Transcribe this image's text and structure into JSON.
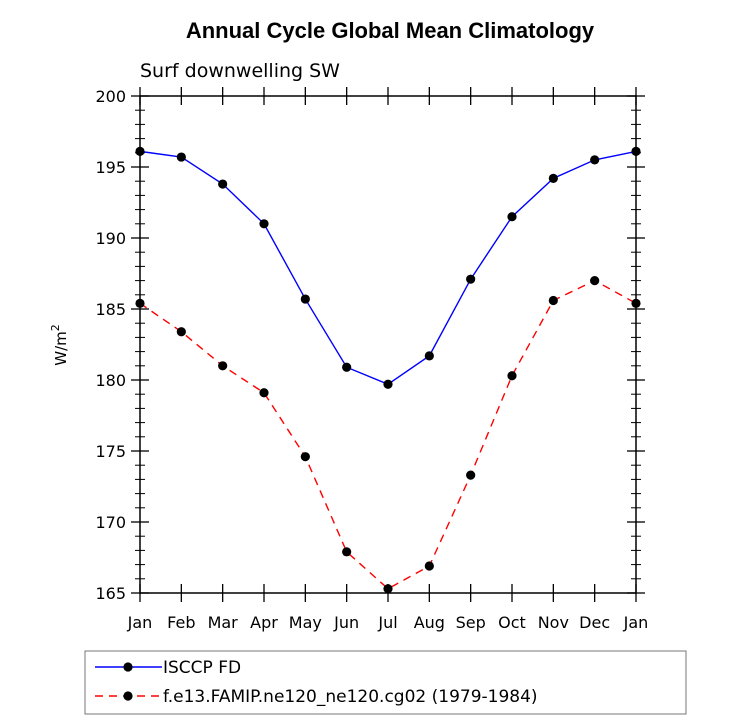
{
  "chart_data": {
    "type": "line",
    "title": "Annual Cycle Global Mean Climatology",
    "subtitle": "Surf downwelling SW",
    "ylabel_base": "W/m",
    "ylabel_sup": "2",
    "xlabel": "",
    "categories": [
      "Jan",
      "Feb",
      "Mar",
      "Apr",
      "May",
      "Jun",
      "Jul",
      "Aug",
      "Sep",
      "Oct",
      "Nov",
      "Dec",
      "Jan"
    ],
    "ylim": [
      165,
      200
    ],
    "yticks": [
      165,
      170,
      175,
      180,
      185,
      190,
      195,
      200
    ],
    "series": [
      {
        "name": "ISCCP FD",
        "color": "#0000ff",
        "dash": "solid",
        "values": [
          196.1,
          195.7,
          193.8,
          191.0,
          185.7,
          180.9,
          179.7,
          181.7,
          187.1,
          191.5,
          194.2,
          195.5,
          196.1
        ]
      },
      {
        "name": "f.e13.FAMIP.ne120_ne120.cg02 (1979-1984)",
        "color": "#ff0000",
        "dash": "dashed",
        "values": [
          185.4,
          183.4,
          181.0,
          179.1,
          174.6,
          167.9,
          165.3,
          166.9,
          173.3,
          180.3,
          185.6,
          187.0,
          185.4
        ]
      }
    ],
    "marker_color": "#000000"
  }
}
